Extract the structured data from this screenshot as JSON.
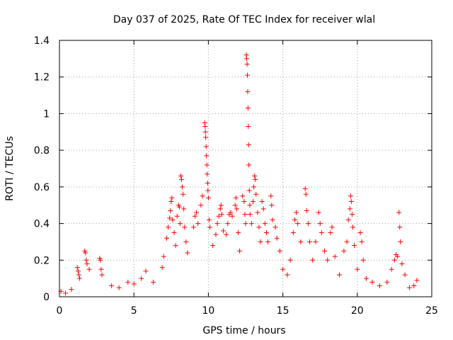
{
  "chart_data": {
    "type": "scatter",
    "title": "Day 037 of 2025, Rate Of TEC Index for receiver wlal",
    "xlabel": "GPS time / hours",
    "ylabel": "ROTI / TECUs",
    "xlim": [
      0,
      25
    ],
    "ylim": [
      0,
      1.4
    ],
    "xticks": [
      0,
      5,
      10,
      15,
      20,
      25
    ],
    "xtick_labels": [
      "0",
      "5",
      "10",
      "15",
      "20",
      "25"
    ],
    "yticks": [
      0,
      0.2,
      0.4,
      0.6,
      0.8,
      1,
      1.2,
      1.4
    ],
    "ytick_labels": [
      "0",
      "0.2",
      "0.4",
      "0.6",
      "0.8",
      "1",
      "1.2",
      "1.4"
    ],
    "grid": true,
    "marker": "+",
    "color": "#ff0000",
    "series": [
      {
        "name": "ROTI",
        "points": [
          [
            0.1,
            0.03
          ],
          [
            0.4,
            0.02
          ],
          [
            0.8,
            0.04
          ],
          [
            1.2,
            0.16
          ],
          [
            1.25,
            0.14
          ],
          [
            1.3,
            0.12
          ],
          [
            1.35,
            0.1
          ],
          [
            1.7,
            0.25
          ],
          [
            1.75,
            0.24
          ],
          [
            1.8,
            0.2
          ],
          [
            1.85,
            0.18
          ],
          [
            2.0,
            0.15
          ],
          [
            2.7,
            0.21
          ],
          [
            2.75,
            0.2
          ],
          [
            2.8,
            0.15
          ],
          [
            2.85,
            0.12
          ],
          [
            3.5,
            0.06
          ],
          [
            4.0,
            0.05
          ],
          [
            4.6,
            0.08
          ],
          [
            5.0,
            0.07
          ],
          [
            5.5,
            0.1
          ],
          [
            5.8,
            0.14
          ],
          [
            6.3,
            0.08
          ],
          [
            6.9,
            0.16
          ],
          [
            7.0,
            0.22
          ],
          [
            7.2,
            0.32
          ],
          [
            7.3,
            0.38
          ],
          [
            7.4,
            0.43
          ],
          [
            7.45,
            0.47
          ],
          [
            7.5,
            0.52
          ],
          [
            7.55,
            0.54
          ],
          [
            7.6,
            0.42
          ],
          [
            7.7,
            0.35
          ],
          [
            7.8,
            0.28
          ],
          [
            7.9,
            0.44
          ],
          [
            8.0,
            0.5
          ],
          [
            8.05,
            0.49
          ],
          [
            8.1,
            0.4
          ],
          [
            8.15,
            0.66
          ],
          [
            8.2,
            0.64
          ],
          [
            8.25,
            0.6
          ],
          [
            8.3,
            0.56
          ],
          [
            8.35,
            0.48
          ],
          [
            8.4,
            0.38
          ],
          [
            8.5,
            0.3
          ],
          [
            8.6,
            0.24
          ],
          [
            9.0,
            0.38
          ],
          [
            9.1,
            0.44
          ],
          [
            9.2,
            0.46
          ],
          [
            9.3,
            0.4
          ],
          [
            9.5,
            0.5
          ],
          [
            9.6,
            0.55
          ],
          [
            9.75,
            0.95
          ],
          [
            9.78,
            0.93
          ],
          [
            9.8,
            0.9
          ],
          [
            9.82,
            0.87
          ],
          [
            9.85,
            0.82
          ],
          [
            9.87,
            0.77
          ],
          [
            9.9,
            0.72
          ],
          [
            9.92,
            0.67
          ],
          [
            9.95,
            0.62
          ],
          [
            9.97,
            0.58
          ],
          [
            10.0,
            0.54
          ],
          [
            10.05,
            0.42
          ],
          [
            10.1,
            0.38
          ],
          [
            10.3,
            0.28
          ],
          [
            10.5,
            0.34
          ],
          [
            10.6,
            0.4
          ],
          [
            10.7,
            0.44
          ],
          [
            10.8,
            0.48
          ],
          [
            10.85,
            0.5
          ],
          [
            10.9,
            0.45
          ],
          [
            11.0,
            0.36
          ],
          [
            11.2,
            0.34
          ],
          [
            11.3,
            0.4
          ],
          [
            11.4,
            0.45
          ],
          [
            11.5,
            0.46
          ],
          [
            11.6,
            0.44
          ],
          [
            11.8,
            0.5
          ],
          [
            11.85,
            0.54
          ],
          [
            11.9,
            0.48
          ],
          [
            12.0,
            0.35
          ],
          [
            12.1,
            0.25
          ],
          [
            12.3,
            0.55
          ],
          [
            12.4,
            0.52
          ],
          [
            12.45,
            0.45
          ],
          [
            12.5,
            0.4
          ],
          [
            12.55,
            1.32
          ],
          [
            12.57,
            1.3
          ],
          [
            12.6,
            1.27
          ],
          [
            12.62,
            1.21
          ],
          [
            12.64,
            1.12
          ],
          [
            12.66,
            1.03
          ],
          [
            12.68,
            0.93
          ],
          [
            12.7,
            0.83
          ],
          [
            12.72,
            0.72
          ],
          [
            12.75,
            0.58
          ],
          [
            12.78,
            0.5
          ],
          [
            12.8,
            0.45
          ],
          [
            12.9,
            0.4
          ],
          [
            13.0,
            0.52
          ],
          [
            13.05,
            0.6
          ],
          [
            13.1,
            0.66
          ],
          [
            13.15,
            0.64
          ],
          [
            13.2,
            0.56
          ],
          [
            13.3,
            0.46
          ],
          [
            13.4,
            0.38
          ],
          [
            13.5,
            0.3
          ],
          [
            13.6,
            0.52
          ],
          [
            13.7,
            0.48
          ],
          [
            13.8,
            0.4
          ],
          [
            13.9,
            0.35
          ],
          [
            14.0,
            0.3
          ],
          [
            14.2,
            0.55
          ],
          [
            14.25,
            0.5
          ],
          [
            14.3,
            0.42
          ],
          [
            14.5,
            0.38
          ],
          [
            14.6,
            0.32
          ],
          [
            14.8,
            0.25
          ],
          [
            15.0,
            0.15
          ],
          [
            15.3,
            0.12
          ],
          [
            15.5,
            0.2
          ],
          [
            15.7,
            0.35
          ],
          [
            15.8,
            0.42
          ],
          [
            15.9,
            0.46
          ],
          [
            16.0,
            0.4
          ],
          [
            16.2,
            0.3
          ],
          [
            16.5,
            0.59
          ],
          [
            16.55,
            0.56
          ],
          [
            16.6,
            0.47
          ],
          [
            16.7,
            0.4
          ],
          [
            16.8,
            0.3
          ],
          [
            17.0,
            0.2
          ],
          [
            17.2,
            0.3
          ],
          [
            17.4,
            0.46
          ],
          [
            17.5,
            0.4
          ],
          [
            17.6,
            0.35
          ],
          [
            17.8,
            0.25
          ],
          [
            18.0,
            0.2
          ],
          [
            18.2,
            0.35
          ],
          [
            18.3,
            0.38
          ],
          [
            18.5,
            0.22
          ],
          [
            18.8,
            0.12
          ],
          [
            19.1,
            0.25
          ],
          [
            19.3,
            0.3
          ],
          [
            19.4,
            0.42
          ],
          [
            19.5,
            0.48
          ],
          [
            19.55,
            0.55
          ],
          [
            19.6,
            0.52
          ],
          [
            19.65,
            0.45
          ],
          [
            19.7,
            0.38
          ],
          [
            19.8,
            0.28
          ],
          [
            20.0,
            0.15
          ],
          [
            20.2,
            0.35
          ],
          [
            20.3,
            0.3
          ],
          [
            20.4,
            0.2
          ],
          [
            20.6,
            0.1
          ],
          [
            21.0,
            0.08
          ],
          [
            21.5,
            0.06
          ],
          [
            22.0,
            0.08
          ],
          [
            22.3,
            0.15
          ],
          [
            22.5,
            0.2
          ],
          [
            22.6,
            0.23
          ],
          [
            22.7,
            0.22
          ],
          [
            22.8,
            0.46
          ],
          [
            22.85,
            0.38
          ],
          [
            22.9,
            0.3
          ],
          [
            23.0,
            0.18
          ],
          [
            23.2,
            0.12
          ],
          [
            23.5,
            0.05
          ],
          [
            23.8,
            0.06
          ],
          [
            24.0,
            0.09
          ]
        ]
      }
    ]
  }
}
